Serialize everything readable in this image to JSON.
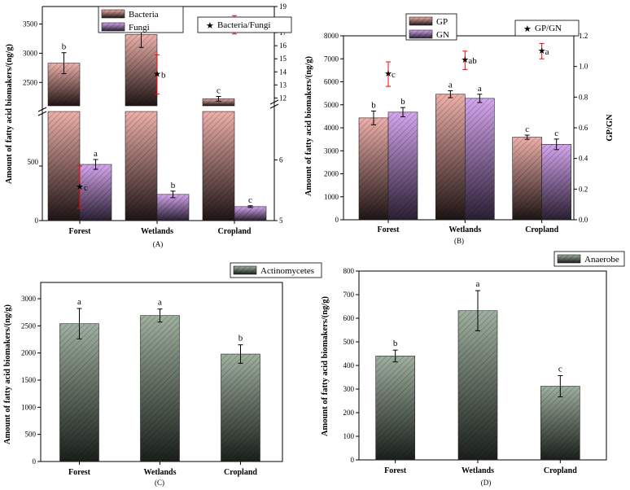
{
  "colors": {
    "bacteria": "#e9a9a3",
    "fungi": "#c79ae0",
    "gp": "#e9a9a3",
    "gn": "#c79ae0",
    "actinomycetes": "#97a897",
    "anaerobe": "#97a897",
    "ratio_marker": "#000000",
    "ratio_error": "#ff0000"
  },
  "chart_data": [
    {
      "type": "bar",
      "panel_label": "(A)",
      "categories": [
        "Forest",
        "Wetlands",
        "Cropland"
      ],
      "ylabel": "Amount of fatty acid biomakers/(ng/g)",
      "axis_break": {
        "lower": [
          0,
          1000
        ],
        "upper": [
          2100,
          3800
        ]
      },
      "ylim_upper": [
        2100,
        3800
      ],
      "ylim_lower": [
        0,
        1000
      ],
      "yticks_lower": [
        "0",
        "500"
      ],
      "yticks_upper": [
        "2500",
        "3000",
        "3500"
      ],
      "series": [
        {
          "name": "Bacteria",
          "values": [
            2830,
            3320,
            2220
          ],
          "errors": [
            180,
            220,
            40
          ],
          "letters": [
            "b",
            "a",
            "c"
          ]
        },
        {
          "name": "Fungi",
          "values": [
            515,
            240,
            128
          ],
          "errors": [
            45,
            30,
            8
          ],
          "letters": [
            "a",
            "b",
            "c"
          ]
        }
      ],
      "secondary": {
        "name": "Bacteria/Fungi",
        "type": "scatter",
        "values": [
          5.55,
          13.8,
          17.6
        ],
        "errors": [
          0.35,
          1.5,
          0.7
        ],
        "letters": [
          "c",
          "b",
          "a"
        ],
        "axis_break": {
          "lower": [
            5,
            6.8
          ],
          "upper": [
            11.4,
            19
          ]
        },
        "yticks_lower": [
          "5",
          "6"
        ],
        "yticks_upper": [
          "12",
          "13",
          "14",
          "15",
          "16",
          "17",
          "18",
          "19"
        ]
      }
    },
    {
      "type": "bar",
      "panel_label": "(B)",
      "categories": [
        "Forest",
        "Wetlands",
        "Cropland"
      ],
      "ylabel": "Amount of fatty acid biomakers/(ng/g)",
      "ylim": [
        0,
        8000
      ],
      "yticks": [
        "0",
        "1000",
        "2000",
        "3000",
        "4000",
        "5000",
        "6000",
        "7000",
        "8000"
      ],
      "series": [
        {
          "name": "GP",
          "values": [
            4430,
            5460,
            3590
          ],
          "errors": [
            300,
            150,
            90
          ],
          "letters": [
            "b",
            "a",
            "c"
          ]
        },
        {
          "name": "GN",
          "values": [
            4680,
            5280,
            3280
          ],
          "errors": [
            200,
            180,
            230
          ],
          "letters": [
            "b",
            "a",
            "c"
          ]
        }
      ],
      "secondary": {
        "name": "GP/GN",
        "ylabel": "GP/GN",
        "type": "scatter",
        "values": [
          0.95,
          1.04,
          1.1
        ],
        "errors": [
          0.08,
          0.06,
          0.05
        ],
        "letters": [
          "c",
          "ab",
          "a"
        ],
        "ylim": [
          0,
          1.2
        ],
        "yticks": [
          "0.0",
          "0.2",
          "0.4",
          "0.6",
          "0.8",
          "1.0",
          "1.2"
        ]
      }
    },
    {
      "type": "bar",
      "panel_label": "(C)",
      "categories": [
        "Forest",
        "Wetlands",
        "Cropland"
      ],
      "ylabel": "Amount of fatty acid biomakers/(ng/g)",
      "ylim": [
        0,
        3300
      ],
      "yticks": [
        "0",
        "500",
        "1000",
        "1500",
        "2000",
        "2500",
        "3000"
      ],
      "series": [
        {
          "name": "Actinomycetes",
          "values": [
            2540,
            2690,
            1980
          ],
          "errors": [
            280,
            120,
            170
          ],
          "letters": [
            "a",
            "a",
            "b"
          ]
        }
      ]
    },
    {
      "type": "bar",
      "panel_label": "(D)",
      "categories": [
        "Forest",
        "Wetlands",
        "Cropland"
      ],
      "ylabel": "Amount of fatty acid biomakers/(ng/g)",
      "ylim": [
        0,
        800
      ],
      "yticks": [
        "0",
        "100",
        "200",
        "300",
        "400",
        "500",
        "600",
        "700",
        "800"
      ],
      "series": [
        {
          "name": "Anaerobe",
          "values": [
            440,
            632,
            312
          ],
          "errors": [
            25,
            85,
            45
          ],
          "letters": [
            "b",
            "a",
            "c"
          ]
        }
      ]
    }
  ]
}
